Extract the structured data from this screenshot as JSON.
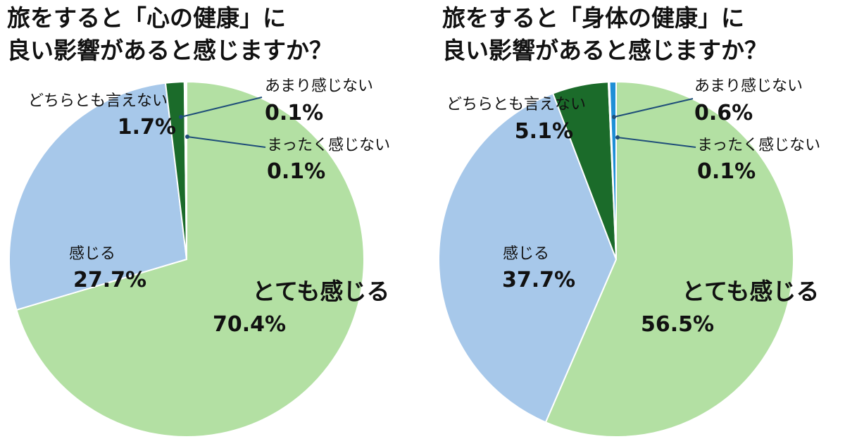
{
  "chart_data": [
    {
      "type": "pie",
      "title": [
        "旅をすると「心の健康」に",
        "良い影響があると感じますか？"
      ],
      "slices": [
        {
          "label": "とても感じる",
          "value": 70.4,
          "display": "70.4%",
          "color": "#b3e0a3"
        },
        {
          "label": "感じる",
          "value": 27.7,
          "display": "27.7%",
          "color": "#a7c8ea"
        },
        {
          "label": "どちらとも言えない",
          "value": 1.7,
          "display": "1.7%",
          "color": "#1b6b2a"
        },
        {
          "label": "あまり感じない",
          "value": 0.1,
          "display": "0.1%",
          "color": "#1f8fd6"
        },
        {
          "label": "まったく感じない",
          "value": 0.1,
          "display": "0.1%",
          "color": "#0d3f7a"
        }
      ]
    },
    {
      "type": "pie",
      "title": [
        "旅をすると「身体の健康」に",
        "良い影響があると感じますか？"
      ],
      "slices": [
        {
          "label": "とても感じる",
          "value": 56.5,
          "display": "56.5%",
          "color": "#b3e0a3"
        },
        {
          "label": "感じる",
          "value": 37.7,
          "display": "37.7%",
          "color": "#a7c8ea"
        },
        {
          "label": "どちらとも言えない",
          "value": 5.1,
          "display": "5.1%",
          "color": "#1b6b2a"
        },
        {
          "label": "あまり感じない",
          "value": 0.6,
          "display": "0.6%",
          "color": "#1f8fd6"
        },
        {
          "label": "まったく感じない",
          "value": 0.1,
          "display": "0.1%",
          "color": "#0d3f7a"
        }
      ]
    }
  ],
  "colors": {
    "leader_line": "#1f4e79",
    "slice_border": "#ffffff",
    "text": "#111111"
  }
}
